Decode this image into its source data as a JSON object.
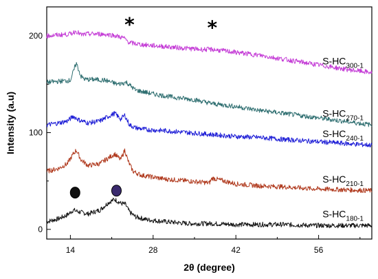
{
  "chart_data": {
    "type": "line",
    "xlabel": "2θ (degree)",
    "ylabel": "Intensity (a.u)",
    "xlim": [
      10,
      65
    ],
    "ylim": [
      -10,
      230
    ],
    "x_ticks": [
      14,
      28,
      42,
      56
    ],
    "y_ticks": [
      0,
      100,
      200
    ],
    "grid": false,
    "legend": "inline-right",
    "series": [
      {
        "name": "S-HC",
        "sub": "180-1",
        "color": "#111111",
        "x": [
          10,
          12,
          13.5,
          14.5,
          15.5,
          17,
          19,
          20.5,
          21.5,
          22.5,
          23.3,
          24,
          25,
          27,
          30,
          34,
          38,
          42,
          46,
          50,
          55,
          60,
          65
        ],
        "y": [
          8,
          11,
          15,
          20,
          18,
          16,
          20,
          28,
          31,
          27,
          26,
          18,
          13,
          10,
          8,
          6,
          6,
          5,
          5,
          5,
          4,
          4,
          4
        ]
      },
      {
        "name": "S-HC",
        "sub": "210-1",
        "color": "#b03a1e",
        "x": [
          10,
          12,
          13.5,
          14.5,
          15,
          15.8,
          17,
          19,
          20.5,
          21.5,
          22.5,
          23.2,
          23.8,
          24.6,
          26,
          28,
          30,
          34,
          37.5,
          38,
          42,
          46,
          50,
          55,
          60,
          65
        ],
        "y": [
          60,
          63,
          68,
          78,
          82,
          72,
          66,
          68,
          74,
          78,
          72,
          82,
          70,
          60,
          56,
          54,
          52,
          50,
          48,
          53,
          47,
          45,
          44,
          42,
          41,
          40
        ]
      },
      {
        "name": "S-HC",
        "sub": "240-1",
        "color": "#1c1cd6",
        "x": [
          10,
          12,
          13.5,
          14.5,
          15.5,
          17,
          19,
          20.5,
          21.5,
          22.5,
          23.2,
          24,
          25,
          27,
          30,
          34,
          38,
          42,
          46,
          50,
          55,
          60,
          65
        ],
        "y": [
          108,
          110,
          112,
          117,
          113,
          110,
          112,
          117,
          120,
          114,
          118,
          108,
          105,
          103,
          102,
          100,
          98,
          96,
          95,
          93,
          91,
          89,
          87
        ]
      },
      {
        "name": "S-HC",
        "sub": "270-1",
        "color": "#2e6e70",
        "x": [
          10,
          12,
          14,
          15,
          15.8,
          16.5,
          18,
          20,
          22,
          23.5,
          25,
          28,
          31,
          35,
          38,
          42,
          46,
          50,
          55,
          60,
          65
        ],
        "y": [
          152,
          153,
          154,
          172,
          158,
          155,
          155,
          154,
          150,
          152,
          144,
          140,
          137,
          134,
          130,
          127,
          123,
          120,
          116,
          112,
          108
        ]
      },
      {
        "name": "S-HC",
        "sub": "300-1",
        "color": "#c43cd6",
        "x": [
          10,
          12,
          14,
          15,
          15.8,
          17,
          19,
          21,
          23,
          24,
          26,
          28,
          32,
          36,
          38,
          42,
          46,
          50,
          55,
          60,
          65
        ],
        "y": [
          200,
          201,
          202,
          205,
          201,
          202,
          202,
          201,
          198,
          193,
          191,
          190,
          188,
          186,
          186,
          183,
          180,
          176,
          171,
          166,
          162
        ]
      }
    ],
    "annotations": {
      "stars": [
        {
          "x": 24,
          "y": 215,
          "text": "*"
        },
        {
          "x": 38,
          "y": 212,
          "text": "*"
        }
      ],
      "dots": [
        {
          "x": 14.8,
          "y": 38,
          "color": "#111111"
        },
        {
          "x": 21.8,
          "y": 40,
          "color": "#3a2a6e"
        }
      ]
    }
  }
}
